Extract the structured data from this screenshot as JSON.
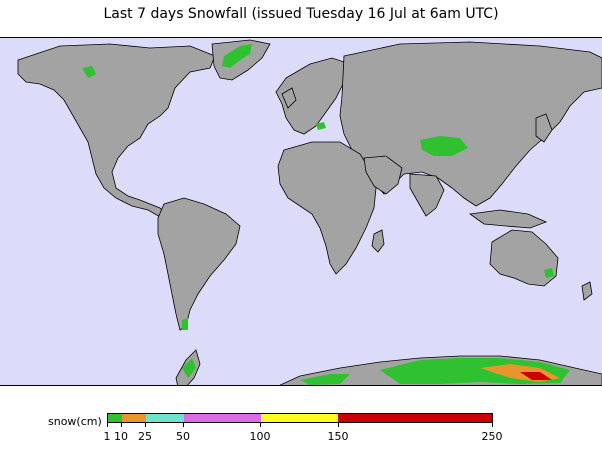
{
  "title": "Last 7 days Snowfall (issued Tuesday 16 Jul at 6am UTC)",
  "colors": {
    "ocean": "#dcdcfa",
    "land": "#a3a3a3",
    "land_shade": "#8a8a8a",
    "coast": "#000000"
  },
  "legend": {
    "label": "snow(cm)",
    "ticks": [
      "1",
      "10",
      "25",
      "50",
      "100",
      "150",
      "250"
    ],
    "segments": [
      {
        "from": "1",
        "to": "10",
        "color": "#2fc12f"
      },
      {
        "from": "10",
        "to": "25",
        "color": "#e7952c"
      },
      {
        "from": "25",
        "to": "50",
        "color": "#6fe4cc"
      },
      {
        "from": "50",
        "to": "100",
        "color": "#de6ae6"
      },
      {
        "from": "100",
        "to": "150",
        "color": "#ffff1e"
      },
      {
        "from": "150",
        "to": "250",
        "color": "#cc0000"
      }
    ]
  }
}
